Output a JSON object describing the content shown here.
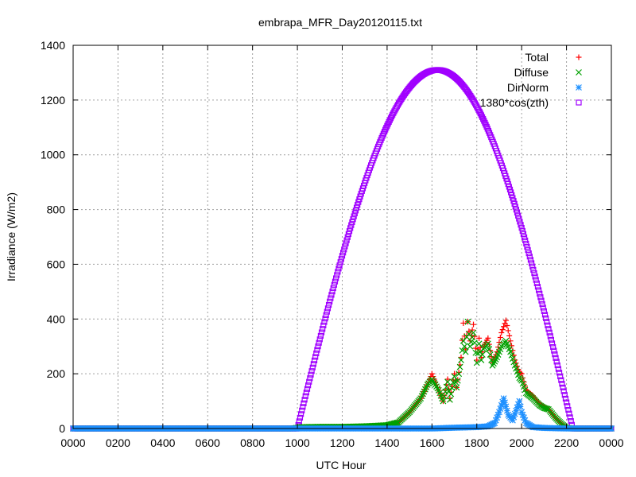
{
  "chart_data": {
    "type": "scatter",
    "title": "embrapa_MFR_Day20120115.txt",
    "xlabel": "UTC Hour",
    "ylabel": "Irradiance (W/m2)",
    "xlim": [
      0,
      24
    ],
    "ylim": [
      0,
      1400
    ],
    "x_tick_values": [
      0,
      2,
      4,
      6,
      8,
      10,
      12,
      14,
      16,
      18,
      20,
      22,
      24
    ],
    "x_tick_labels": [
      "0000",
      "0200",
      "0400",
      "0600",
      "0800",
      "1000",
      "1200",
      "1400",
      "1600",
      "1800",
      "2000",
      "2200",
      "0000"
    ],
    "y_ticks": [
      0,
      200,
      400,
      600,
      800,
      1000,
      1200,
      1400
    ],
    "grid": true,
    "legend_position": "top-right",
    "series": [
      {
        "name": "Total",
        "color": "#ff0000",
        "marker": "plus",
        "points": [
          [
            0,
            0
          ],
          [
            2,
            0
          ],
          [
            4,
            0
          ],
          [
            6,
            0
          ],
          [
            8,
            0
          ],
          [
            9.8,
            0
          ],
          [
            10.2,
            5
          ],
          [
            11,
            6
          ],
          [
            12,
            6
          ],
          [
            13,
            8
          ],
          [
            14,
            12
          ],
          [
            14.5,
            22
          ],
          [
            15,
            60
          ],
          [
            15.5,
            110
          ],
          [
            15.8,
            160
          ],
          [
            16,
            200
          ],
          [
            16.3,
            140
          ],
          [
            16.5,
            100
          ],
          [
            16.7,
            180
          ],
          [
            16.8,
            110
          ],
          [
            17,
            200
          ],
          [
            17.1,
            150
          ],
          [
            17.3,
            260
          ],
          [
            17.4,
            385
          ],
          [
            17.5,
            290
          ],
          [
            17.6,
            390
          ],
          [
            17.7,
            320
          ],
          [
            17.85,
            380
          ],
          [
            18,
            250
          ],
          [
            18.1,
            330
          ],
          [
            18.2,
            260
          ],
          [
            18.3,
            300
          ],
          [
            18.5,
            330
          ],
          [
            18.7,
            240
          ],
          [
            18.9,
            280
          ],
          [
            19.1,
            350
          ],
          [
            19.3,
            395
          ],
          [
            19.5,
            320
          ],
          [
            19.7,
            250
          ],
          [
            19.9,
            205
          ],
          [
            20,
            200
          ],
          [
            20.2,
            140
          ],
          [
            20.5,
            120
          ],
          [
            20.8,
            90
          ],
          [
            21,
            80
          ],
          [
            21.2,
            70
          ],
          [
            21.5,
            40
          ],
          [
            21.8,
            15
          ],
          [
            22,
            2
          ],
          [
            22.3,
            0
          ],
          [
            23,
            0
          ],
          [
            24,
            0
          ]
        ]
      },
      {
        "name": "Diffuse",
        "color": "#00a000",
        "marker": "cross",
        "points": [
          [
            0,
            0
          ],
          [
            2,
            0
          ],
          [
            4,
            0
          ],
          [
            6,
            0
          ],
          [
            8,
            0
          ],
          [
            9.8,
            0
          ],
          [
            10.2,
            5
          ],
          [
            11,
            6
          ],
          [
            12,
            6
          ],
          [
            13,
            8
          ],
          [
            14,
            12
          ],
          [
            14.5,
            22
          ],
          [
            15,
            60
          ],
          [
            15.5,
            110
          ],
          [
            15.8,
            160
          ],
          [
            16,
            180
          ],
          [
            16.3,
            140
          ],
          [
            16.5,
            100
          ],
          [
            16.7,
            170
          ],
          [
            16.8,
            105
          ],
          [
            17,
            190
          ],
          [
            17.1,
            150
          ],
          [
            17.3,
            250
          ],
          [
            17.4,
            320
          ],
          [
            17.5,
            280
          ],
          [
            17.6,
            390
          ],
          [
            17.7,
            300
          ],
          [
            17.85,
            350
          ],
          [
            18,
            240
          ],
          [
            18.1,
            310
          ],
          [
            18.2,
            250
          ],
          [
            18.3,
            290
          ],
          [
            18.5,
            310
          ],
          [
            18.7,
            230
          ],
          [
            18.9,
            260
          ],
          [
            19.1,
            300
          ],
          [
            19.3,
            320
          ],
          [
            19.5,
            280
          ],
          [
            19.7,
            230
          ],
          [
            19.9,
            185
          ],
          [
            20,
            175
          ],
          [
            20.2,
            130
          ],
          [
            20.5,
            110
          ],
          [
            20.8,
            85
          ],
          [
            21,
            75
          ],
          [
            21.2,
            70
          ],
          [
            21.5,
            40
          ],
          [
            21.8,
            15
          ],
          [
            22,
            2
          ],
          [
            22.3,
            0
          ],
          [
            23,
            0
          ],
          [
            24,
            0
          ]
        ]
      },
      {
        "name": "DirNorm",
        "color": "#1e90ff",
        "marker": "star",
        "points": [
          [
            0,
            0
          ],
          [
            2,
            0
          ],
          [
            4,
            0
          ],
          [
            6,
            0
          ],
          [
            8,
            0
          ],
          [
            10,
            0
          ],
          [
            12,
            0
          ],
          [
            14,
            0
          ],
          [
            16,
            0
          ],
          [
            17,
            3
          ],
          [
            18,
            5
          ],
          [
            18.5,
            8
          ],
          [
            18.8,
            20
          ],
          [
            19,
            60
          ],
          [
            19.2,
            110
          ],
          [
            19.4,
            50
          ],
          [
            19.6,
            30
          ],
          [
            19.9,
            100
          ],
          [
            20,
            60
          ],
          [
            20.2,
            20
          ],
          [
            20.5,
            5
          ],
          [
            21,
            2
          ],
          [
            22,
            0
          ],
          [
            24,
            0
          ]
        ]
      },
      {
        "name": "1380*cos(zth)",
        "color": "#a000ff",
        "marker": "square",
        "sunrise": 10.0,
        "sunset": 22.28,
        "peak": 1310,
        "peak_hour": 16.25
      }
    ]
  }
}
